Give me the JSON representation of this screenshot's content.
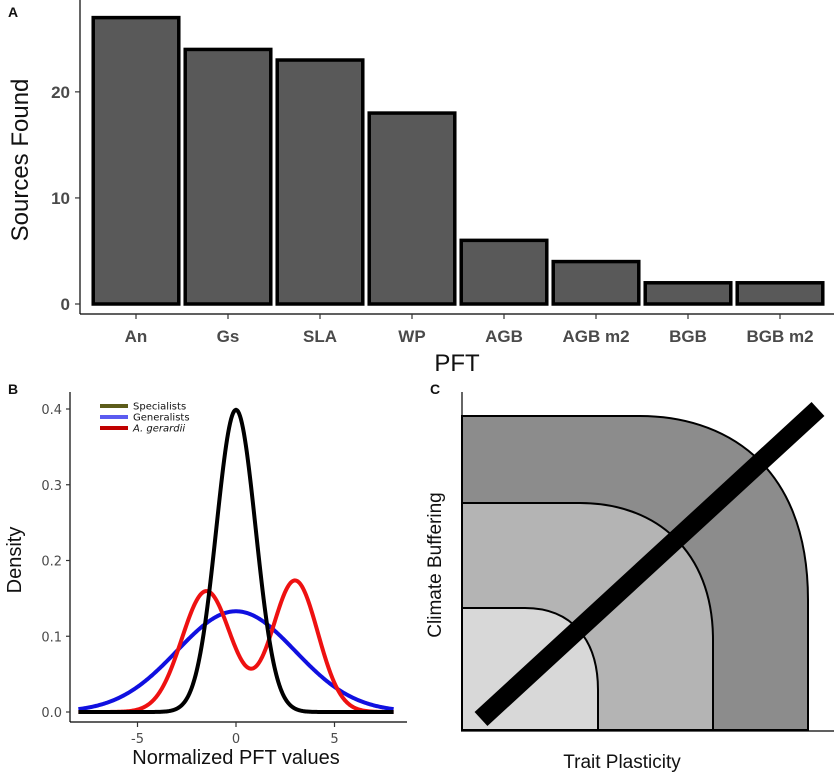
{
  "chart_data": [
    {
      "panel": "A",
      "type": "bar",
      "categories": [
        "An",
        "Gs",
        "SLA",
        "WP",
        "AGB",
        "AGB m2",
        "BGB",
        "BGB m2"
      ],
      "values": [
        27,
        24,
        23,
        18,
        6,
        4,
        2,
        2
      ],
      "xlabel": "PFT",
      "ylabel": "Sources Found",
      "yticks": [
        0,
        10,
        20
      ],
      "ylim": [
        0,
        28
      ],
      "bar_color": "#595959",
      "grid": false
    },
    {
      "panel": "B",
      "type": "line",
      "xlabel": "Normalized PFT values",
      "ylabel": "Density",
      "xlim": [
        -8,
        8
      ],
      "ylim": [
        0,
        0.42
      ],
      "xticks": [
        -5,
        0,
        5
      ],
      "yticks": [
        0.0,
        0.1,
        0.2,
        0.3,
        0.4
      ],
      "ytick_labels": [
        "0.0",
        "0.1",
        "0.2",
        "0.3",
        "0.4"
      ],
      "legend_position": "top-left",
      "series": [
        {
          "name": "Specialists",
          "legend_color": "#5c5c1a",
          "color": "#000000",
          "components": [
            {
              "weight": 1.0,
              "mean": 0,
              "sd": 1
            }
          ]
        },
        {
          "name": "Generalists",
          "legend_color": "#5b5bf0",
          "color": "#1010e0",
          "components": [
            {
              "weight": 1.0,
              "mean": 0,
              "sd": 3
            }
          ]
        },
        {
          "name": "A. gerardii",
          "legend_color": "#c00000",
          "color": "#ee1111",
          "components": [
            {
              "weight": 0.5,
              "mean": -1.5,
              "sd": 1.25
            },
            {
              "weight": 0.5,
              "mean": 3,
              "sd": 1.15
            }
          ]
        }
      ]
    },
    {
      "panel": "C",
      "type": "diagram",
      "xlabel": "Trait Plasticity",
      "ylabel": "Climate Buffering",
      "zones": [
        {
          "name": "outer-zone",
          "color": "#8c8c8c"
        },
        {
          "name": "middle-zone",
          "color": "#b4b4b4"
        },
        {
          "name": "inner-zone",
          "color": "#d8d8d8"
        }
      ],
      "diagonal_color": "#000000"
    }
  ],
  "labels": {
    "panel_a": "A",
    "panel_b": "B",
    "panel_c": "C"
  }
}
